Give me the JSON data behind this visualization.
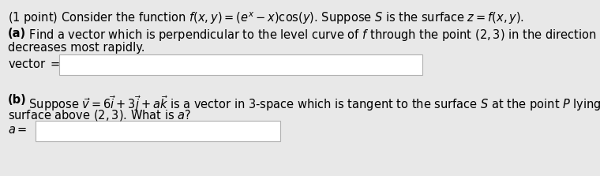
{
  "bg_color": "#e8e8e8",
  "box_color": "#ffffff",
  "box_edge_color": "#b0b0b0",
  "line1": "(1 point) Consider the function $f(x, y) = (e^{x} - x)\\cos(y)$. Suppose $S$ is the surface $z = f(x, y)$.",
  "line2a_bold": "(a)",
  "line2a_rest": " Find a vector which is perpendicular to the level curve of $f$ through the point $(2, 3)$ in the direction in which $f$",
  "line3": "decreases most rapidly.",
  "line4_label": "vector $=$",
  "line5b_bold": "(b)",
  "line5b_rest": " Suppose $\\vec{v} = 6\\vec{i} + 3\\vec{j} + a\\vec{k}$ is a vector in 3-space which is tangent to the surface $S$ at the point $P$ lying on the",
  "line6": "surface above $(2, 3)$. What is $a$?",
  "line7_label": "$a =$",
  "font_size": 10.5,
  "bold_size": 10.5
}
